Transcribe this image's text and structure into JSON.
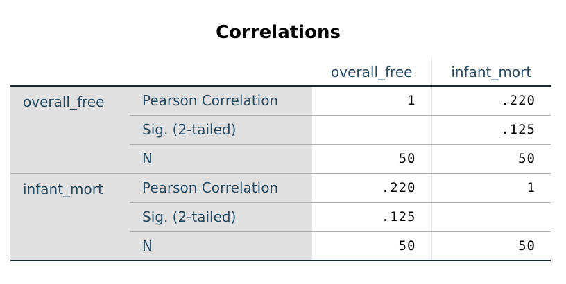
{
  "title": "Correlations",
  "columns": [
    "overall_free",
    "infant_mort"
  ],
  "groups": [
    {
      "variable": "overall_free",
      "rows": [
        {
          "stat": "Pearson Correlation",
          "values": [
            "1",
            ".220"
          ]
        },
        {
          "stat": "Sig. (2-tailed)",
          "values": [
            "",
            ".125"
          ]
        },
        {
          "stat": "N",
          "values": [
            "50",
            "50"
          ]
        }
      ]
    },
    {
      "variable": "infant_mort",
      "rows": [
        {
          "stat": "Pearson Correlation",
          "values": [
            ".220",
            "1"
          ]
        },
        {
          "stat": "Sig. (2-tailed)",
          "values": [
            ".125",
            ""
          ]
        },
        {
          "stat": "N",
          "values": [
            "50",
            "50"
          ]
        }
      ]
    }
  ],
  "colors": {
    "label_text": "#264a60",
    "label_bg": "#e0e0e0",
    "rule": "#152935",
    "grid": "#aeaeae"
  }
}
